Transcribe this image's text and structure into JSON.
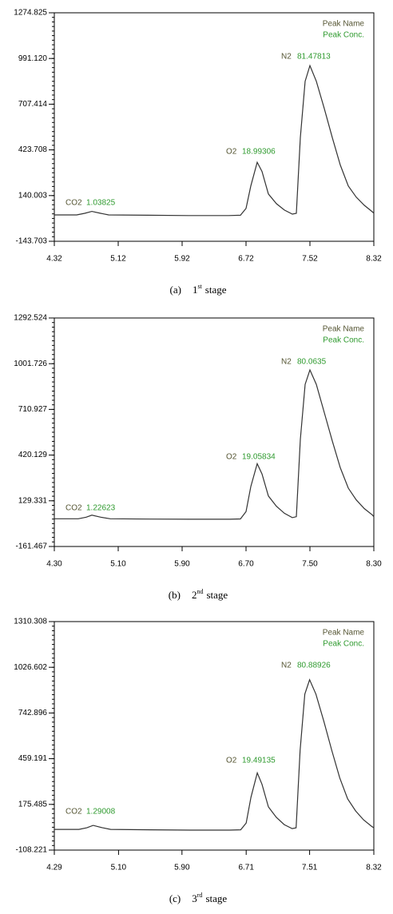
{
  "chart_data": [
    {
      "type": "line",
      "legend": [
        "Peak Name",
        "Peak Conc."
      ],
      "caption": {
        "label": "(a)",
        "number": "1",
        "suffix": "st",
        "text": "stage"
      },
      "peaks": [
        {
          "name": "CO2",
          "conc": 1.03825
        },
        {
          "name": "O2",
          "conc": 18.99306
        },
        {
          "name": "N2",
          "conc": 81.47813
        }
      ],
      "xlim": [
        4.32,
        8.32
      ],
      "xticks": [
        4.32,
        5.12,
        5.92,
        6.72,
        7.52,
        8.32
      ],
      "ylim": [
        -143.703,
        1274.825
      ],
      "yticks": [
        -143.703,
        140.003,
        423.708,
        707.414,
        {
          "value": 991.12,
          "label": "991.120"
        },
        1274.825
      ],
      "x": [
        4.32,
        4.6,
        4.7,
        4.79,
        4.9,
        5.0,
        5.5,
        6.0,
        6.5,
        6.65,
        6.72,
        6.78,
        6.86,
        6.92,
        7.0,
        7.1,
        7.2,
        7.3,
        7.35,
        7.4,
        7.46,
        7.52,
        7.6,
        7.7,
        7.8,
        7.9,
        8.0,
        8.1,
        8.2,
        8.3,
        8.32
      ],
      "series": [
        {
          "color": "#333333",
          "values": [
            20,
            20,
            30,
            42,
            30,
            20,
            18,
            16,
            16,
            18,
            60,
            200,
            347,
            290,
            150,
            90,
            50,
            25,
            30,
            500,
            850,
            947,
            850,
            680,
            500,
            330,
            200,
            130,
            80,
            40,
            30
          ]
        }
      ]
    },
    {
      "type": "line",
      "legend": [
        "Peak Name",
        "Peak Conc."
      ],
      "caption": {
        "label": "(b)",
        "number": "2",
        "suffix": "nd",
        "text": "stage"
      },
      "peaks": [
        {
          "name": "CO2",
          "conc": 1.22623
        },
        {
          "name": "O2",
          "conc": 19.05834
        },
        {
          "name": "N2",
          "conc": 80.0635
        }
      ],
      "xlim": [
        4.3,
        8.3
      ],
      "xticks": [
        {
          "value": 4.3,
          "label": "4.30"
        },
        {
          "value": 5.1,
          "label": "5.10"
        },
        {
          "value": 5.9,
          "label": "5.90"
        },
        {
          "value": 6.7,
          "label": "6.70"
        },
        {
          "value": 7.5,
          "label": "7.50"
        },
        {
          "value": 8.3,
          "label": "8.30"
        }
      ],
      "ylim": [
        -161.467,
        1292.524
      ],
      "yticks": [
        -161.467,
        129.331,
        420.129,
        710.927,
        1001.726,
        1292.524
      ],
      "x": [
        4.3,
        4.6,
        4.7,
        4.77,
        4.88,
        5.0,
        5.5,
        6.0,
        6.5,
        6.63,
        6.7,
        6.76,
        6.84,
        6.9,
        6.98,
        7.08,
        7.18,
        7.28,
        7.33,
        7.38,
        7.44,
        7.5,
        7.58,
        7.68,
        7.78,
        7.88,
        7.98,
        8.08,
        8.18,
        8.28,
        8.3
      ],
      "series": [
        {
          "color": "#333333",
          "values": [
            15,
            15,
            25,
            38,
            25,
            15,
            13,
            12,
            12,
            14,
            60,
            220,
            365,
            300,
            160,
            95,
            50,
            22,
            28,
            520,
            870,
            962,
            870,
            690,
            510,
            340,
            210,
            135,
            80,
            40,
            28
          ]
        }
      ]
    },
    {
      "type": "line",
      "legend": [
        "Peak Name",
        "Peak Conc."
      ],
      "caption": {
        "label": "(c)",
        "number": "3",
        "suffix": "rd",
        "text": "stage"
      },
      "peaks": [
        {
          "name": "CO2",
          "conc": 1.29008
        },
        {
          "name": "O2",
          "conc": 19.49135
        },
        {
          "name": "N2",
          "conc": 80.88926
        }
      ],
      "xlim": [
        4.29,
        8.32
      ],
      "xticks": [
        4.29,
        {
          "value": 5.1,
          "label": "5.10"
        },
        {
          "value": 5.9,
          "label": "5.90"
        },
        6.71,
        7.51,
        8.32
      ],
      "ylim": [
        -108.221,
        1310.308
      ],
      "yticks": [
        -108.221,
        175.485,
        459.191,
        742.896,
        1026.602,
        1310.308
      ],
      "x": [
        4.29,
        4.6,
        4.7,
        4.78,
        4.9,
        5.0,
        5.5,
        6.0,
        6.5,
        6.64,
        6.71,
        6.77,
        6.85,
        6.91,
        6.99,
        7.09,
        7.19,
        7.29,
        7.34,
        7.39,
        7.45,
        7.51,
        7.59,
        7.69,
        7.79,
        7.89,
        7.99,
        8.09,
        8.19,
        8.29,
        8.32
      ],
      "series": [
        {
          "color": "#333333",
          "values": [
            20,
            20,
            30,
            45,
            30,
            20,
            18,
            16,
            16,
            18,
            60,
            220,
            371,
            300,
            160,
            95,
            50,
            25,
            30,
            510,
            860,
            949,
            860,
            690,
            510,
            340,
            210,
            135,
            80,
            40,
            30
          ]
        }
      ]
    }
  ]
}
